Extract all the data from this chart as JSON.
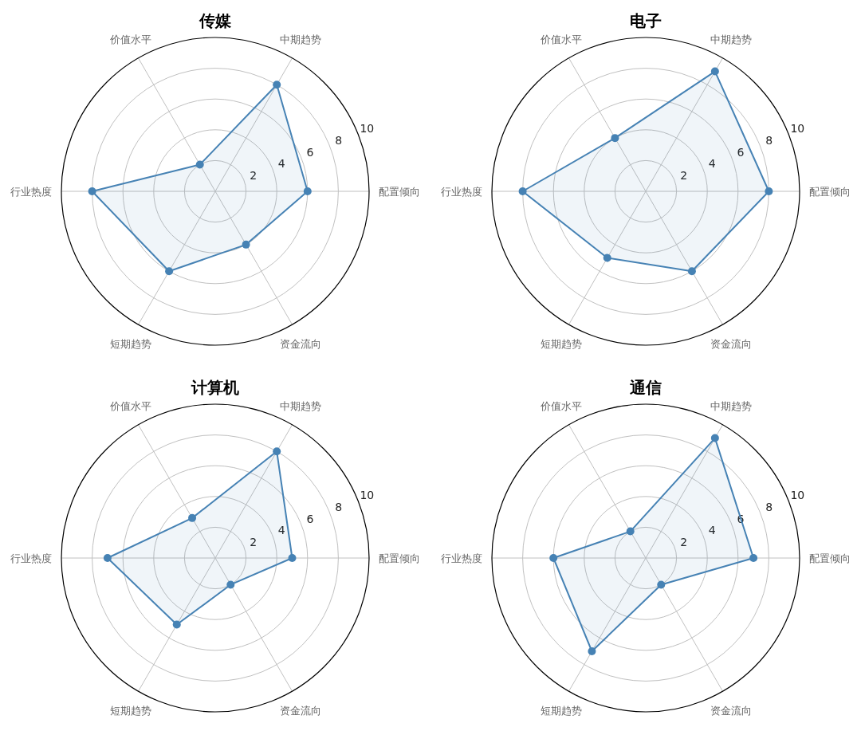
{
  "chart_data": [
    {
      "type": "radar",
      "title": "传媒",
      "categories": [
        "中期趋势",
        "配置倾向",
        "资金流向",
        "短期趋势",
        "行业热度",
        "价值水平"
      ],
      "series": [
        {
          "color": "#4682b4",
          "values": [
            8,
            6,
            4,
            6,
            8,
            2
          ]
        }
      ],
      "ylim": [
        0,
        10
      ],
      "yticks": [
        2,
        4,
        6,
        8,
        10
      ],
      "grid": true,
      "marker": "circle"
    },
    {
      "type": "radar",
      "title": "电子",
      "categories": [
        "中期趋势",
        "配置倾向",
        "资金流向",
        "短期趋势",
        "行业热度",
        "价值水平"
      ],
      "series": [
        {
          "color": "#4682b4",
          "values": [
            9,
            8,
            6,
            5,
            8,
            4
          ]
        }
      ],
      "ylim": [
        0,
        10
      ],
      "yticks": [
        2,
        4,
        6,
        8,
        10
      ],
      "grid": true,
      "marker": "circle"
    },
    {
      "type": "radar",
      "title": "计算机",
      "categories": [
        "中期趋势",
        "配置倾向",
        "资金流向",
        "短期趋势",
        "行业热度",
        "价值水平"
      ],
      "series": [
        {
          "color": "#4682b4",
          "values": [
            8,
            5,
            2,
            5,
            7,
            3
          ]
        }
      ],
      "ylim": [
        0,
        10
      ],
      "yticks": [
        2,
        4,
        6,
        8,
        10
      ],
      "grid": true,
      "marker": "circle"
    },
    {
      "type": "radar",
      "title": "通信",
      "categories": [
        "中期趋势",
        "配置倾向",
        "资金流向",
        "短期趋势",
        "行业热度",
        "价值水平"
      ],
      "series": [
        {
          "color": "#4682b4",
          "values": [
            9,
            7,
            2,
            7,
            6,
            2
          ]
        }
      ],
      "ylim": [
        0,
        10
      ],
      "yticks": [
        2,
        4,
        6,
        8,
        10
      ],
      "grid": true,
      "marker": "circle"
    }
  ]
}
